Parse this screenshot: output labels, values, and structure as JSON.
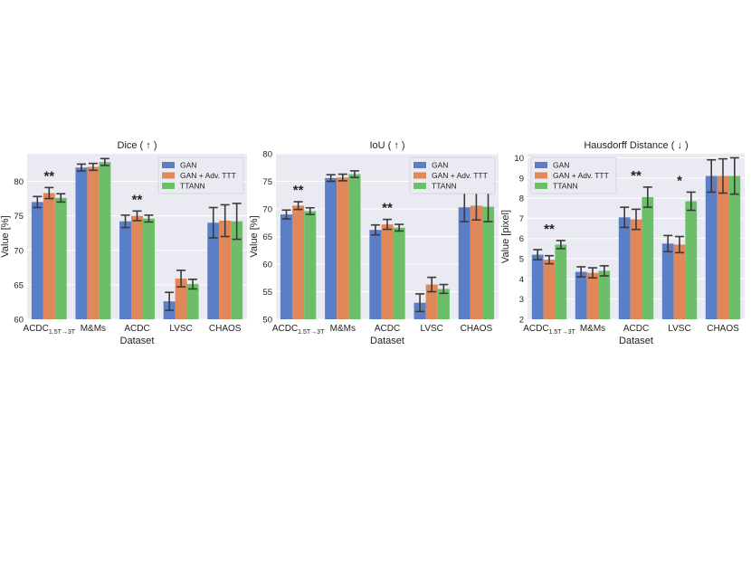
{
  "colors": {
    "GAN": "#5b7fc6",
    "GAN + Adv. TTT": "#e0885a",
    "TTANN": "#6cbf68"
  },
  "chart_data": [
    {
      "type": "bar",
      "title": "Dice ( ↑ )",
      "xlabel": "Dataset",
      "ylabel": "Value [%]",
      "ylim": [
        60,
        84
      ],
      "yticks": [
        60,
        65,
        70,
        75,
        80
      ],
      "grid": true,
      "legend_position": "top-right",
      "categories": [
        {
          "main": "ACDC",
          "sub": "1.5T→3T"
        },
        {
          "main": "M&Ms",
          "sub": ""
        },
        {
          "main": "ACDC",
          "sub": ""
        },
        {
          "main": "LVSC",
          "sub": ""
        },
        {
          "main": "CHAOS",
          "sub": ""
        }
      ],
      "series": [
        {
          "name": "GAN",
          "values": [
            77.0,
            82.0,
            74.2,
            62.6,
            74.0
          ],
          "errors": [
            0.8,
            0.5,
            0.9,
            1.3,
            2.2
          ]
        },
        {
          "name": "GAN + Adv. TTT",
          "values": [
            78.3,
            82.1,
            75.0,
            65.9,
            74.3
          ],
          "errors": [
            0.8,
            0.5,
            0.7,
            1.2,
            2.3
          ]
        },
        {
          "name": "TTANN",
          "values": [
            77.6,
            82.8,
            74.6,
            65.1,
            74.2
          ],
          "errors": [
            0.6,
            0.5,
            0.5,
            0.7,
            2.6
          ]
        }
      ],
      "significance": [
        "**",
        "",
        "**",
        "",
        ""
      ]
    },
    {
      "type": "bar",
      "title": "IoU ( ↑ )",
      "xlabel": "Dataset",
      "ylabel": "Value [%]",
      "ylim": [
        50,
        80
      ],
      "yticks": [
        50,
        55,
        60,
        65,
        70,
        75,
        80
      ],
      "grid": true,
      "legend_position": "top-right",
      "categories": [
        {
          "main": "ACDC",
          "sub": "1.5T→3T"
        },
        {
          "main": "M&Ms",
          "sub": ""
        },
        {
          "main": "ACDC",
          "sub": ""
        },
        {
          "main": "LVSC",
          "sub": ""
        },
        {
          "main": "CHAOS",
          "sub": ""
        }
      ],
      "series": [
        {
          "name": "GAN",
          "values": [
            69.0,
            75.6,
            66.2,
            53.0,
            70.3
          ],
          "errors": [
            0.8,
            0.6,
            0.9,
            1.6,
            2.6
          ]
        },
        {
          "name": "GAN + Adv. TTT",
          "values": [
            70.6,
            75.7,
            67.2,
            56.3,
            70.6
          ],
          "errors": [
            0.7,
            0.6,
            0.9,
            1.3,
            2.6
          ]
        },
        {
          "name": "TTANN",
          "values": [
            69.6,
            76.3,
            66.6,
            55.5,
            70.4
          ],
          "errors": [
            0.6,
            0.6,
            0.6,
            0.8,
            2.7
          ]
        }
      ],
      "significance": [
        "**",
        "",
        "**",
        "",
        ""
      ]
    },
    {
      "type": "bar",
      "title": "Hausdorff Distance ( ↓ )",
      "xlabel": "Dataset",
      "ylabel": "Value [pixel]",
      "ylim": [
        2,
        10.2
      ],
      "yticks": [
        2,
        3,
        4,
        5,
        6,
        7,
        8,
        9,
        10
      ],
      "grid": true,
      "legend_position": "top-left",
      "categories": [
        {
          "main": "ACDC",
          "sub": "1.5T→3T"
        },
        {
          "main": "M&Ms",
          "sub": ""
        },
        {
          "main": "ACDC",
          "sub": ""
        },
        {
          "main": "LVSC",
          "sub": ""
        },
        {
          "main": "CHAOS",
          "sub": ""
        }
      ],
      "series": [
        {
          "name": "GAN",
          "values": [
            5.2,
            4.35,
            7.05,
            5.75,
            9.1
          ],
          "errors": [
            0.25,
            0.25,
            0.5,
            0.4,
            0.8
          ]
        },
        {
          "name": "GAN + Adv. TTT",
          "values": [
            4.95,
            4.3,
            6.95,
            5.7,
            9.1
          ],
          "errors": [
            0.2,
            0.25,
            0.5,
            0.4,
            0.85
          ]
        },
        {
          "name": "TTANN",
          "values": [
            5.7,
            4.4,
            8.05,
            7.85,
            9.1
          ],
          "errors": [
            0.2,
            0.25,
            0.5,
            0.45,
            0.9
          ]
        }
      ],
      "significance": [
        "**",
        "",
        "**",
        "*",
        ""
      ]
    }
  ]
}
